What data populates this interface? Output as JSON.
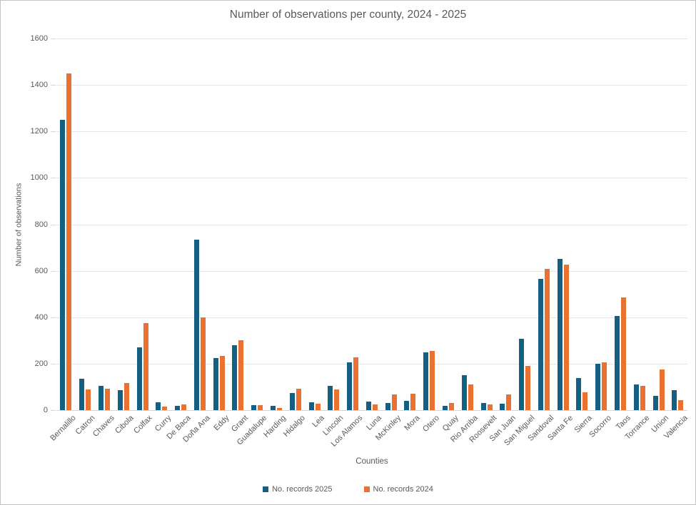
{
  "title": "Number of observations per county, 2024 - 2025",
  "axes": {
    "xlabel": "Counties",
    "ylabel": "Number of observations"
  },
  "colors": {
    "series_2025": "#156082",
    "series_2024": "#e97132",
    "gridline": "#e6e6e6",
    "axis_line": "#d6d6d6",
    "text": "#595959"
  },
  "chart_data": {
    "type": "bar",
    "title": "Number of observations per county, 2024 - 2025",
    "xlabel": "Counties",
    "ylabel": "Number of observations",
    "ylim": [
      0,
      1600
    ],
    "y_ticks": [
      0,
      200,
      400,
      600,
      800,
      1000,
      1200,
      1400,
      1600
    ],
    "grid": "horizontal",
    "legend_position": "bottom",
    "categories": [
      "Bernalillo",
      "Catron",
      "Chaves",
      "Cibola",
      "Colfax",
      "Curry",
      "De Baca",
      "Doña Ana",
      "Eddy",
      "Grant",
      "Guadalupe",
      "Harding",
      "Hidalgo",
      "Lea",
      "Lincoln",
      "Los Alamos",
      "Luna",
      "McKinley",
      "Mora",
      "Otero",
      "Quay",
      "Rio Arriba",
      "Roosevelt",
      "San Juan",
      "San Miguel",
      "Sandoval",
      "Santa Fe",
      "Sierra",
      "Socorro",
      "Taos",
      "Torrance",
      "Union",
      "Valencia"
    ],
    "series": [
      {
        "name": "No. records 2025",
        "color": "#156082",
        "values": [
          1250,
          136,
          104,
          85,
          269,
          34,
          20,
          735,
          224,
          280,
          21,
          17,
          75,
          33,
          105,
          207,
          37,
          31,
          40,
          248,
          20,
          150,
          31,
          27,
          308,
          565,
          650,
          138,
          200,
          405,
          110,
          60,
          85
        ]
      },
      {
        "name": "No. records 2024",
        "color": "#e97132",
        "values": [
          1450,
          90,
          92,
          118,
          374,
          15,
          26,
          400,
          234,
          302,
          21,
          10,
          93,
          29,
          90,
          226,
          24,
          67,
          72,
          255,
          32,
          112,
          26,
          68,
          189,
          608,
          626,
          77,
          205,
          484,
          103,
          176,
          42
        ]
      }
    ]
  }
}
